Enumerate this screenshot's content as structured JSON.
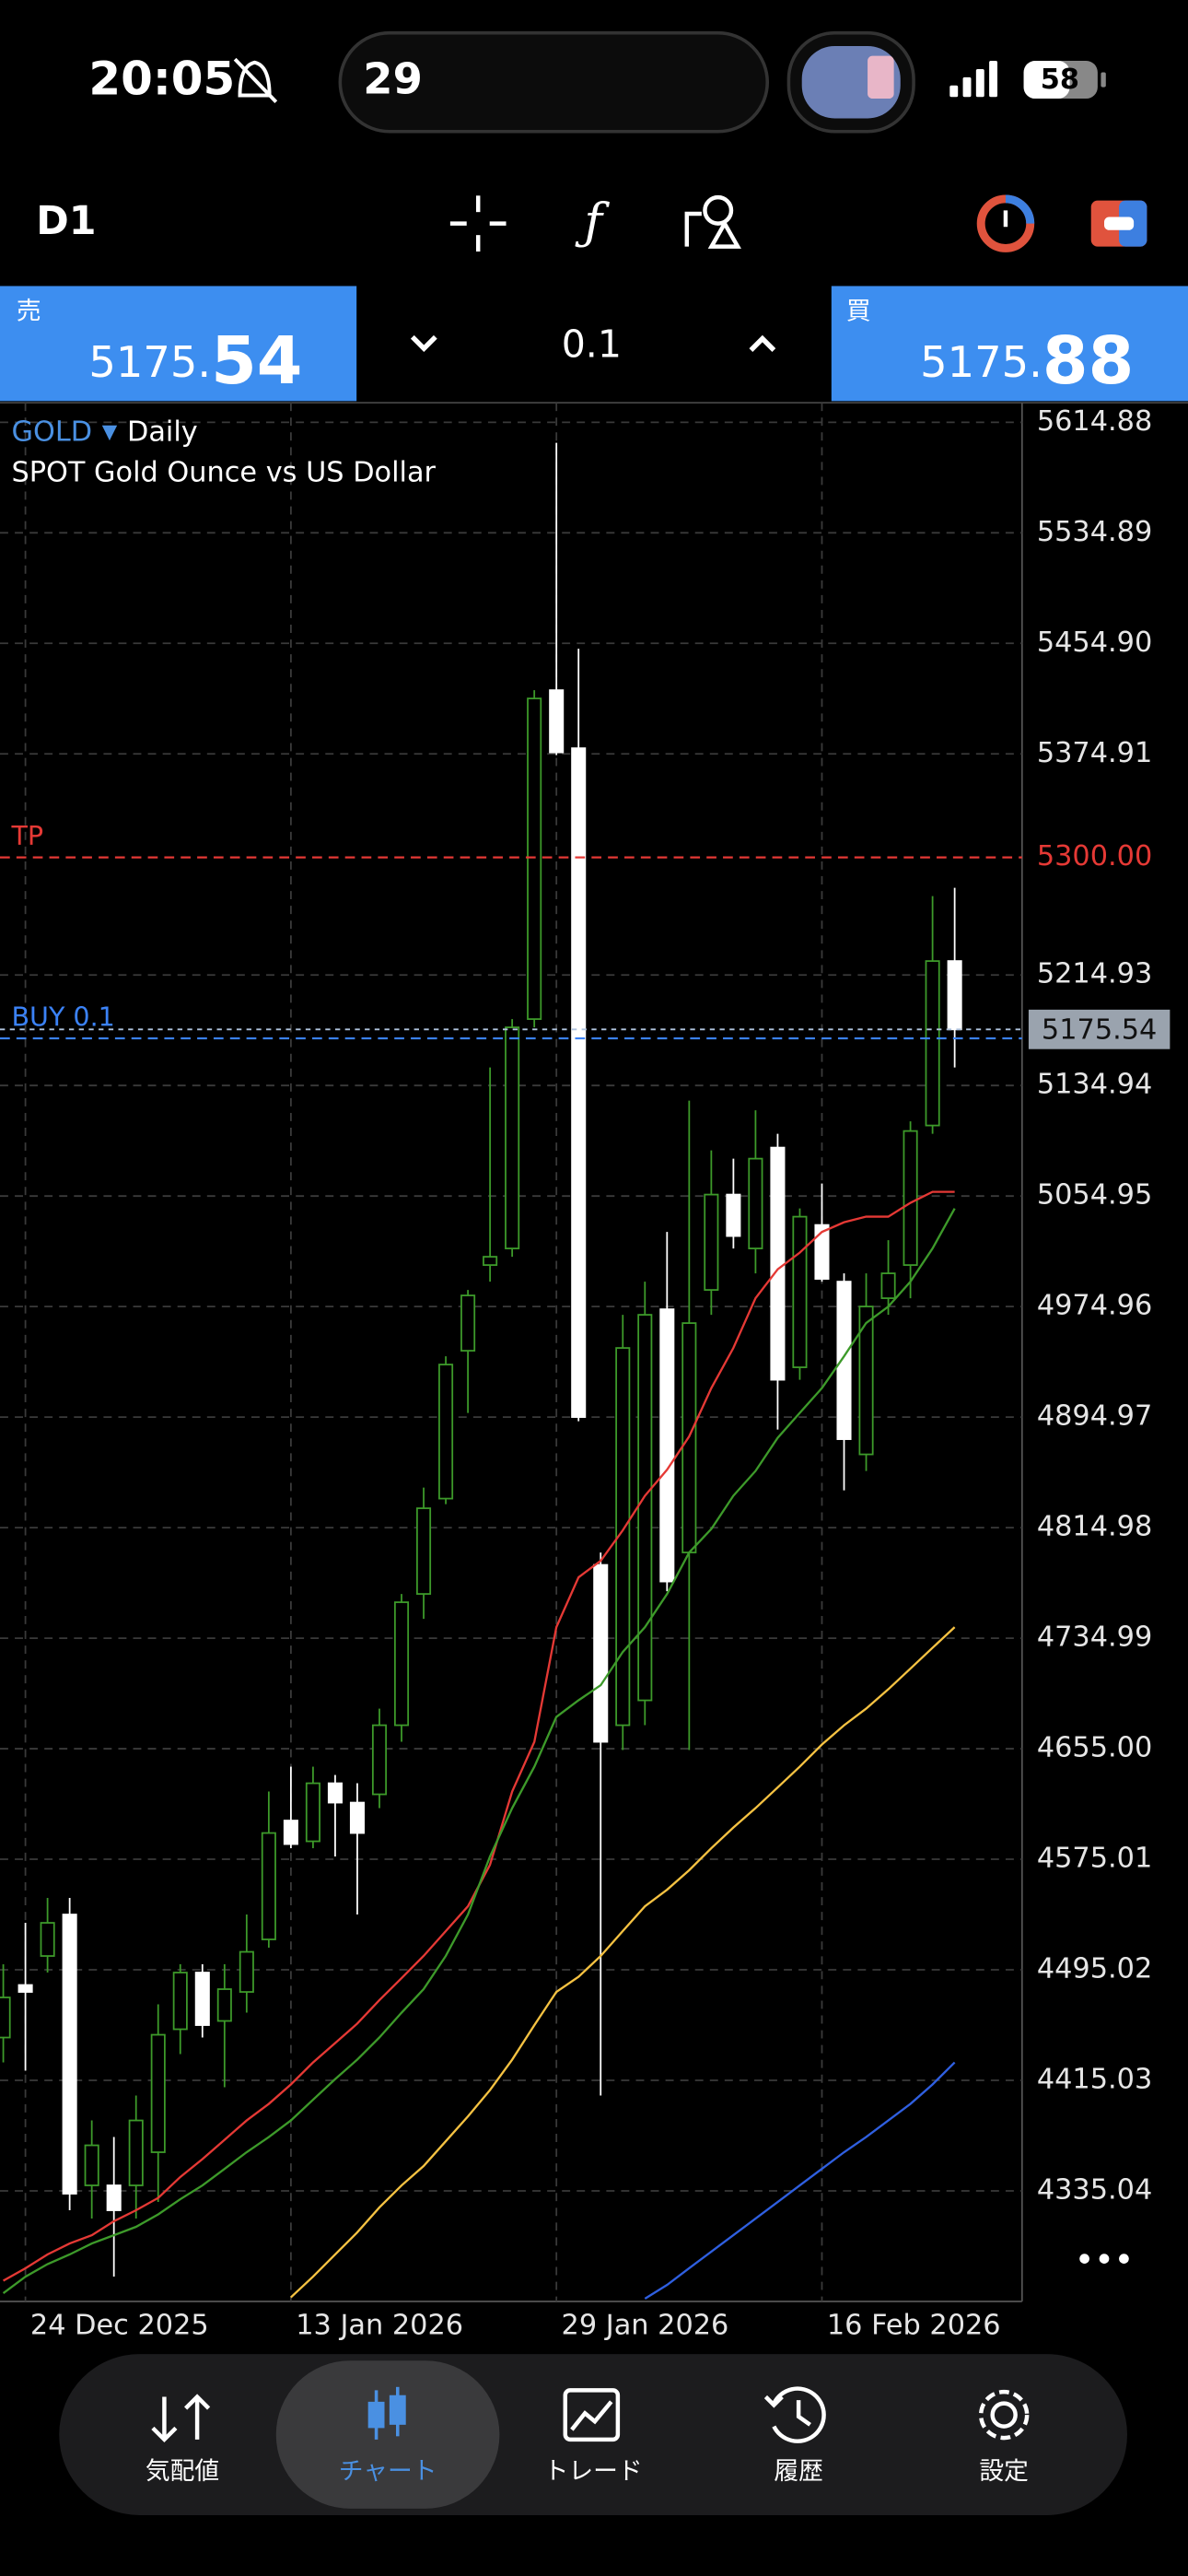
{
  "status_bar": {
    "time": "20:05",
    "island": "29",
    "battery": "58"
  },
  "toolbar": {
    "timeframe": "D1"
  },
  "trade_panel": {
    "sell_label": "売",
    "sell_price_main": "5175.",
    "sell_price_big": "54",
    "volume": "0.1",
    "buy_label": "買",
    "buy_price_main": "5175.",
    "buy_price_big": "88"
  },
  "chart_data": {
    "type": "candlestick",
    "symbol": "GOLD",
    "timeframe": "Daily",
    "subtitle": "SPOT Gold Ounce vs US Dollar",
    "categories": [
      null,
      "24 Dec 2025",
      null,
      null,
      null,
      null,
      null,
      null,
      null,
      null,
      null,
      null,
      null,
      "13 Jan 2026",
      null,
      null,
      null,
      null,
      null,
      null,
      null,
      null,
      null,
      null,
      null,
      "29 Jan 2026",
      null,
      null,
      null,
      null,
      null,
      null,
      null,
      null,
      null,
      null,
      null,
      "16 Feb 2026",
      null,
      null,
      null,
      null,
      null,
      null
    ],
    "open": [
      4446,
      4484,
      4505,
      4535,
      4339,
      4339,
      4339,
      4363,
      4452,
      4493,
      4458,
      4479,
      4517,
      4603,
      4588,
      4630,
      4616,
      4622,
      4672,
      4767,
      4836,
      4943,
      5005,
      5017,
      5183,
      5421,
      5379,
      4788,
      4672,
      4690,
      4973,
      4797,
      4987,
      5056,
      5017,
      5090,
      4931,
      5034,
      4993,
      4868,
      4981,
      5005,
      5106,
      5225
    ],
    "high": [
      4499,
      4529,
      4547,
      4547,
      4386,
      4374,
      4404,
      4470,
      4499,
      4499,
      4499,
      4535,
      4624,
      4642,
      4642,
      4636,
      4630,
      4684,
      4767,
      4844,
      4939,
      4987,
      5148,
      5183,
      5421,
      5600,
      5451,
      4797,
      4969,
      4993,
      5029,
      5124,
      5088,
      5082,
      5117,
      5100,
      5046,
      5064,
      4999,
      4999,
      5023,
      5109,
      5272,
      5278
    ],
    "low": [
      4428,
      4422,
      4493,
      4321,
      4315,
      4273,
      4315,
      4327,
      4434,
      4446,
      4410,
      4464,
      4511,
      4583,
      4583,
      4577,
      4535,
      4612,
      4660,
      4749,
      4832,
      4898,
      4993,
      5011,
      5177,
      5374,
      4892,
      4404,
      4654,
      4672,
      4769,
      4654,
      4969,
      5017,
      4999,
      4886,
      4922,
      4993,
      4842,
      4856,
      4969,
      4981,
      5100,
      5148
    ],
    "close": [
      4475,
      4479,
      4529,
      4333,
      4368,
      4321,
      4386,
      4448,
      4493,
      4455,
      4481,
      4508,
      4594,
      4586,
      4630,
      4616,
      4594,
      4672,
      4761,
      4829,
      4933,
      4983,
      5011,
      5177,
      5415,
      5376,
      4895,
      4660,
      4945,
      4969,
      4776,
      4963,
      5056,
      5026,
      5082,
      4922,
      5040,
      4995,
      4879,
      4975,
      4999,
      5102,
      5225,
      5175.54
    ],
    "up_color": "#3d9a2a",
    "down_color": "#ffffff",
    "series": [
      {
        "color": "#e53935",
        "values": [
          4270,
          4279,
          4289,
          4297,
          4303,
          4313,
          4321,
          4330,
          4345,
          4358,
          4372,
          4386,
          4398,
          4412,
          4428,
          4442,
          4456,
          4473,
          4489,
          4505,
          4523,
          4541,
          4571,
          4624,
          4660,
          4743,
          4779,
          4791,
          4813,
          4838,
          4857,
          4881,
          4916,
          4945,
          4981,
          5002,
          5014,
          5029,
          5036,
          5040,
          5040,
          5050,
          5058,
          5058
        ]
      },
      {
        "color": "#3d9a2a",
        "values": [
          4261,
          4273,
          4282,
          4289,
          4297,
          4303,
          4309,
          4318,
          4329,
          4339,
          4351,
          4363,
          4374,
          4386,
          4401,
          4416,
          4430,
          4446,
          4464,
          4481,
          4505,
          4535,
          4577,
          4612,
          4642,
          4678,
          4690,
          4701,
          4725,
          4743,
          4767,
          4797,
          4814,
          4838,
          4856,
          4880,
          4898,
          4916,
          4939,
          4963,
          4975,
          4993,
          5017,
          5046
        ]
      },
      {
        "color": "#f5c242",
        "values": [
          null,
          null,
          null,
          null,
          null,
          null,
          null,
          null,
          null,
          null,
          null,
          null,
          null,
          4258,
          4273,
          4289,
          4305,
          4323,
          4339,
          4353,
          4371,
          4389,
          4408,
          4430,
          4455,
          4479,
          4490,
          4505,
          4523,
          4541,
          4553,
          4567,
          4583,
          4598,
          4612,
          4627,
          4642,
          4658,
          4672,
          4684,
          4698,
          4713,
          4728,
          4743
        ]
      },
      {
        "color": "#2f5fe0",
        "values": [
          null,
          null,
          null,
          null,
          null,
          null,
          null,
          null,
          null,
          null,
          null,
          null,
          null,
          null,
          null,
          null,
          null,
          null,
          null,
          null,
          null,
          null,
          null,
          null,
          null,
          null,
          null,
          null,
          null,
          4257,
          4267,
          4279,
          4291,
          4303,
          4315,
          4327,
          4339,
          4351,
          4363,
          4374,
          4386,
          4398,
          4412,
          4428
        ]
      }
    ],
    "levels": [
      {
        "label": "TP",
        "value": 5300,
        "value_label": "5300.00",
        "color": "#e53935"
      },
      {
        "label": "BUY 0.1",
        "value": 5169,
        "color": "#3b82f6"
      }
    ],
    "current_price": 5175.54,
    "ylim": [
      4255,
      5629
    ],
    "yticks": [
      5614.88,
      5534.89,
      {
        "value": 5454.9,
        "label": "5454.90"
      },
      5374.91,
      5214.93,
      5134.94,
      5054.95,
      4974.96,
      4894.97,
      4814.98,
      4734.99,
      {
        "value": 4655,
        "label": "4655.00"
      },
      4575.01,
      4495.02,
      4415.03,
      4335.04
    ],
    "grid": true
  },
  "bottom_nav": {
    "tabs": [
      "気配値",
      "チャート",
      "トレード",
      "履歴",
      "設定"
    ],
    "active": 1
  }
}
